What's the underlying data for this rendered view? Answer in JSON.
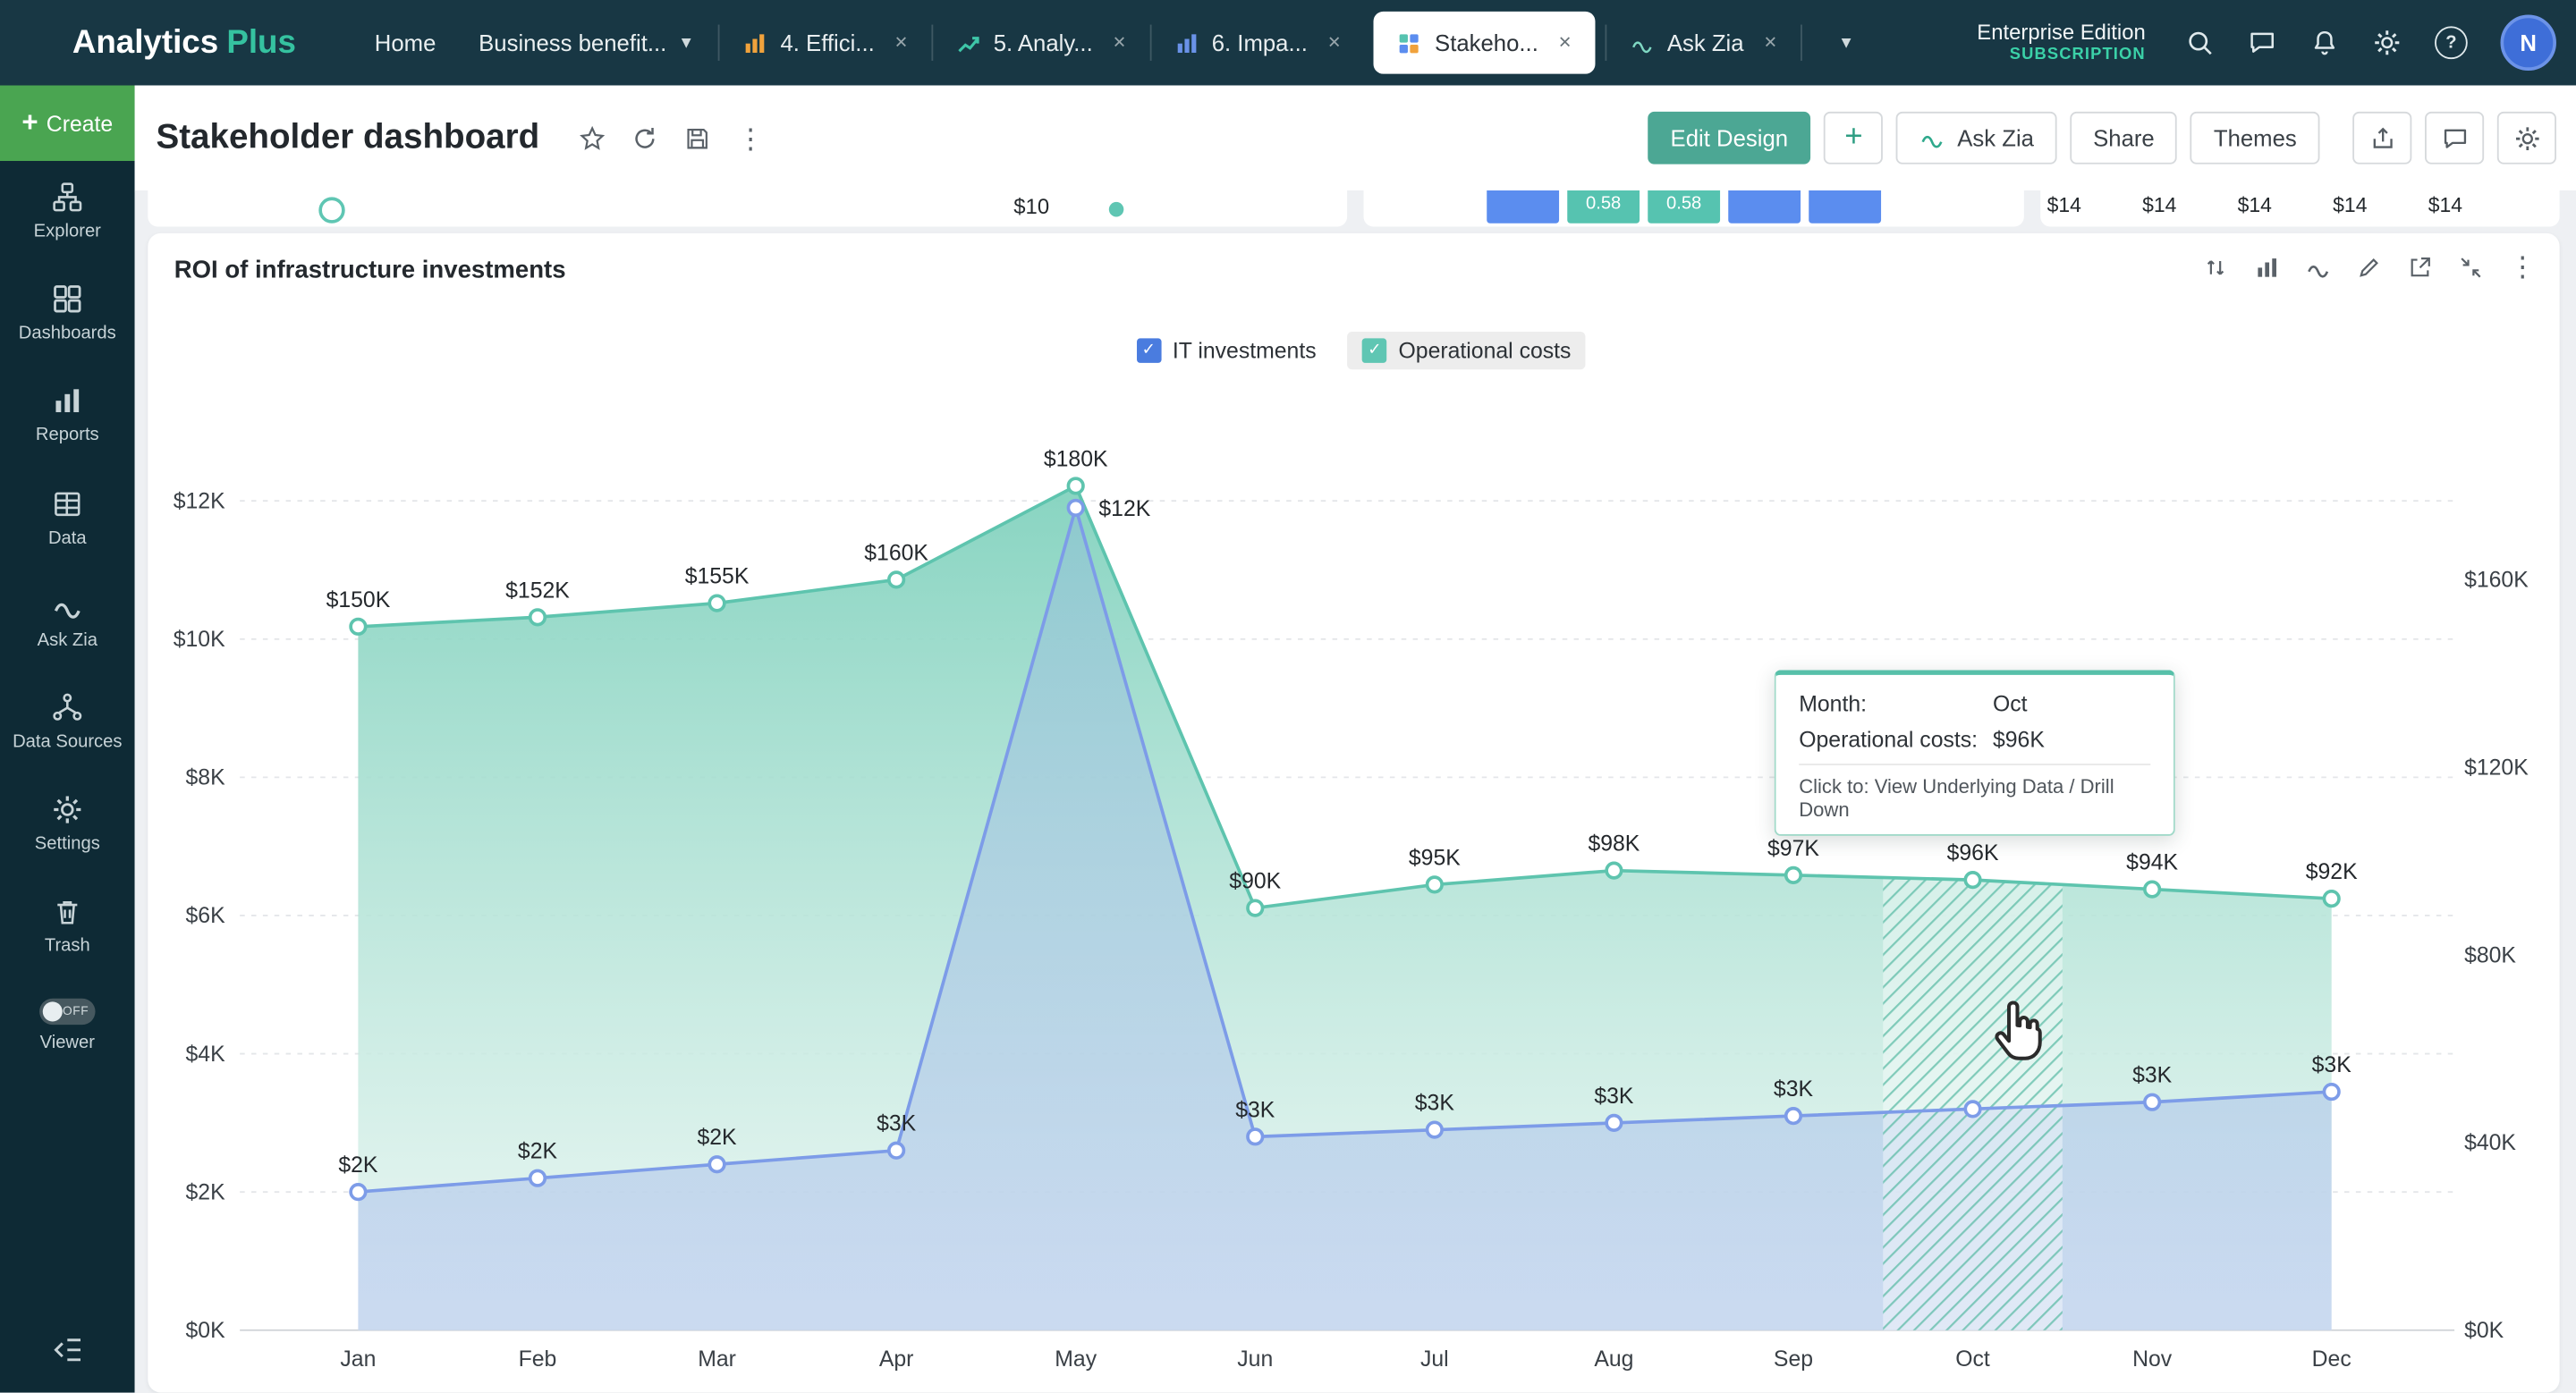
{
  "topbar": {
    "logo": {
      "part1": "Analytics",
      "part2": "Plus"
    },
    "nav": {
      "home": "Home",
      "workspace": "Business benefit..."
    },
    "tabs": [
      {
        "label": "4. Effici..."
      },
      {
        "label": "5. Analy..."
      },
      {
        "label": "6. Impa..."
      },
      {
        "label": "Stakeho..."
      },
      {
        "label": "Ask Zia"
      }
    ],
    "edition_line1": "Enterprise Edition",
    "edition_line2": "SUBSCRIPTION",
    "avatar_initial": "N"
  },
  "sidebar": {
    "create_plus": "+",
    "create_label": "Create",
    "items": [
      {
        "label": "Explorer"
      },
      {
        "label": "Dashboards"
      },
      {
        "label": "Reports"
      },
      {
        "label": "Data"
      },
      {
        "label": "Ask Zia"
      },
      {
        "label": "Data Sources"
      },
      {
        "label": "Settings"
      },
      {
        "label": "Trash"
      }
    ],
    "viewer": {
      "toggle": "OFF",
      "label": "Viewer"
    }
  },
  "header": {
    "title": "Stakeholder dashboard",
    "edit_design": "Edit Design",
    "plus": "+",
    "ask_zia": "Ask Zia",
    "share": "Share",
    "themes": "Themes"
  },
  "clipped_row": {
    "left_value": "$10",
    "boxes": [
      {
        "label": ""
      },
      {
        "label": "0.58"
      },
      {
        "label": "0.58"
      },
      {
        "label": ""
      },
      {
        "label": ""
      }
    ],
    "right_values": [
      "$14",
      "$14",
      "$14",
      "$14",
      "$14"
    ]
  },
  "chart_card": {
    "title": "ROI of infrastructure investments",
    "legend": [
      {
        "label": "IT investments",
        "color": "#4a7cdf"
      },
      {
        "label": "Operational costs",
        "color": "#5fc6b3"
      }
    ],
    "tooltip": {
      "row1_label": "Month:",
      "row1_value": "Oct",
      "row2_label": "Operational costs:",
      "row2_value": "$96K",
      "footer": "Click to: View Underlying Data / Drill Down"
    }
  },
  "chart_data": {
    "type": "area",
    "title": "ROI of infrastructure investments",
    "categories": [
      "Jan",
      "Feb",
      "Mar",
      "Apr",
      "May",
      "Jun",
      "Jul",
      "Aug",
      "Sep",
      "Oct",
      "Nov",
      "Dec"
    ],
    "series": [
      {
        "name": "IT investments",
        "axis": "left",
        "color": "#7d9ce8",
        "values": [
          2,
          2.2,
          2.4,
          2.6,
          11.9,
          2.8,
          2.9,
          3,
          3.1,
          3.2,
          3.3,
          3.45
        ],
        "labels": [
          "$2K",
          "$2K",
          "$2K",
          "$3K",
          "$12K",
          "$3K",
          "$3K",
          "$3K",
          "$3K",
          "",
          "$3K",
          "$3K"
        ]
      },
      {
        "name": "Operational costs",
        "axis": "right",
        "color": "#5ec4ae",
        "values": [
          150,
          152,
          155,
          160,
          180,
          90,
          95,
          98,
          97,
          96,
          94,
          92
        ],
        "labels": [
          "$150K",
          "$152K",
          "$155K",
          "$160K",
          "$180K",
          "$90K",
          "$95K",
          "$98K",
          "$97K",
          "$96K",
          "$94K",
          "$92K"
        ]
      }
    ],
    "left_axis": {
      "ticks": [
        "$0K",
        "$2K",
        "$4K",
        "$6K",
        "$8K",
        "$10K",
        "$12K"
      ],
      "step": 2,
      "max": 12
    },
    "right_axis": {
      "ticks": [
        "$0K",
        "$40K",
        "$80K",
        "$120K",
        "$160K"
      ],
      "step": 40,
      "max": 160
    },
    "grid": "dashed-horizontal",
    "legend_position": "top",
    "highlight_category": "Oct"
  }
}
